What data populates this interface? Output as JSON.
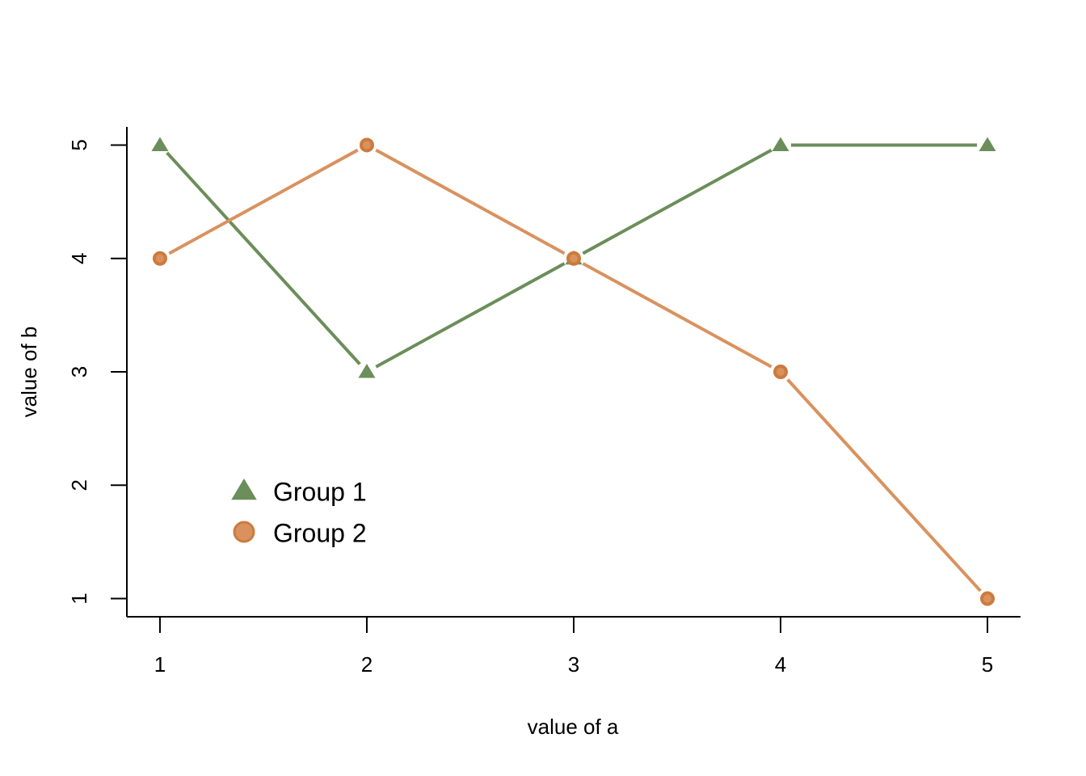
{
  "chart_data": {
    "type": "line",
    "x": [
      1,
      2,
      3,
      4,
      5
    ],
    "series": [
      {
        "name": "Group 1",
        "color": "#6b8e5a",
        "marker": "triangle",
        "values": [
          5,
          3,
          4,
          5,
          5
        ]
      },
      {
        "name": "Group 2",
        "color": "#d9925e",
        "marker": "circle",
        "values": [
          4,
          5,
          4,
          3,
          1
        ]
      }
    ],
    "x_label": "value of a",
    "y_label": "value of b",
    "xlim": [
      0.84,
      5.16
    ],
    "ylim": [
      0.84,
      5.16
    ],
    "xticks": [
      1,
      2,
      3,
      4,
      5
    ],
    "yticks": [
      1,
      2,
      3,
      4,
      5
    ],
    "grid": false,
    "legend_position": "bottom-left"
  }
}
